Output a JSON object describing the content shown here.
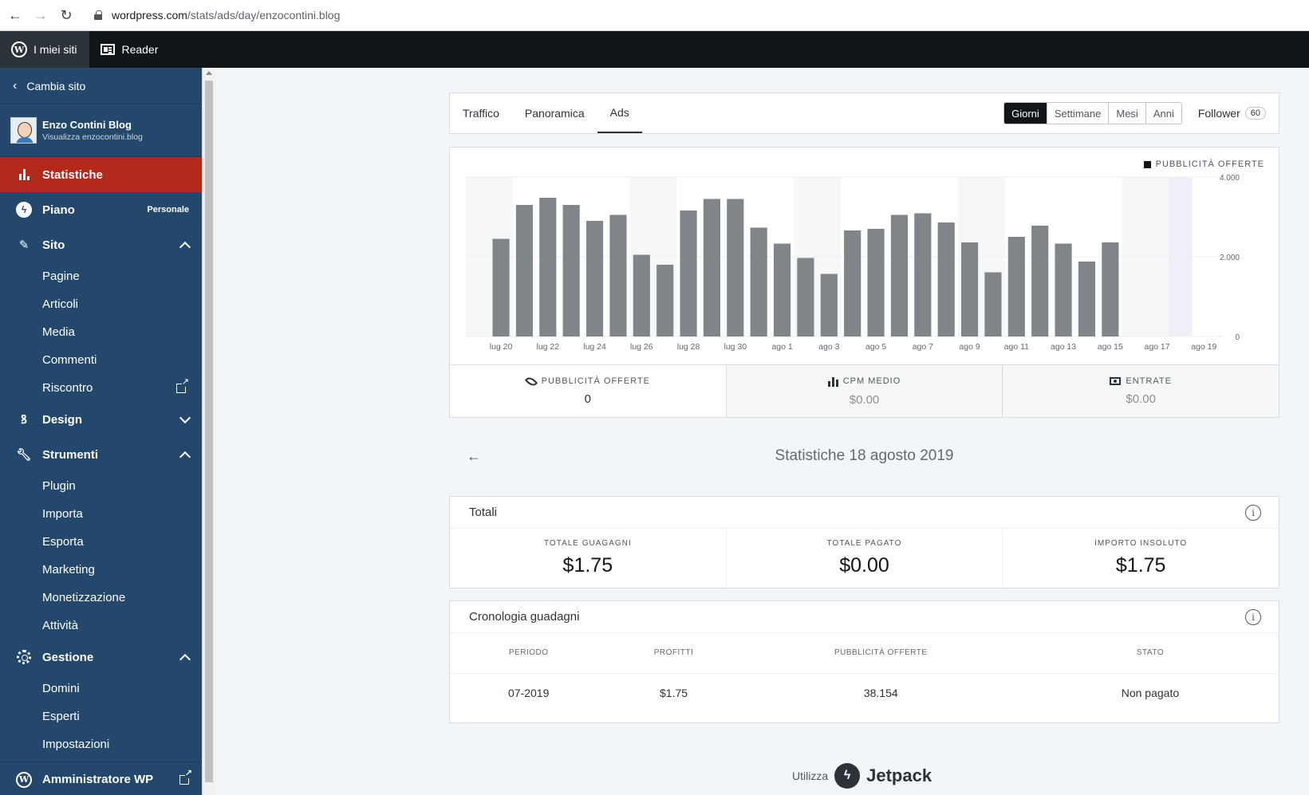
{
  "browser": {
    "url_host": "wordpress.com",
    "url_path": "/stats/ads/day/enzocontini.blog"
  },
  "masterbar": {
    "my_sites": "I miei siti",
    "reader": "Reader"
  },
  "sidebar": {
    "switch_site": "Cambia sito",
    "site_title": "Enzo Contini Blog",
    "site_subtitle": "Visualizza enzocontini.blog",
    "stats": "Statistiche",
    "plan": "Piano",
    "plan_badge": "Personale",
    "site": "Sito",
    "site_items": [
      "Pagine",
      "Articoli",
      "Media",
      "Commenti",
      "Riscontro"
    ],
    "design": "Design",
    "tools": "Strumenti",
    "tools_items": [
      "Plugin",
      "Importa",
      "Esporta",
      "Marketing",
      "Monetizzazione",
      "Attività"
    ],
    "manage": "Gestione",
    "manage_items": [
      "Domini",
      "Esperti",
      "Impostazioni"
    ],
    "wp_admin": "Amministratore WP"
  },
  "nav": {
    "tabs": [
      "Traffico",
      "Panoramica",
      "Ads"
    ],
    "periods": [
      "Giorni",
      "Settimane",
      "Mesi",
      "Anni"
    ],
    "follower_label": "Follower",
    "follower_count": "60"
  },
  "chart_data": {
    "type": "bar",
    "legend": "PUBBLICITÀ OFFERTE",
    "x": [
      "lug 19",
      "lug 20",
      "lug 21",
      "lug 22",
      "lug 23",
      "lug 24",
      "lug 25",
      "lug 26",
      "lug 27",
      "lug 28",
      "lug 29",
      "lug 30",
      "lug 31",
      "ago 1",
      "ago 2",
      "ago 3",
      "ago 4",
      "ago 5",
      "ago 6",
      "ago 7",
      "ago 8",
      "ago 9",
      "ago 10",
      "ago 11",
      "ago 12",
      "ago 13",
      "ago 14",
      "ago 15",
      "ago 16",
      "ago 17",
      "ago 18",
      "ago 19"
    ],
    "x_tick_labels": [
      "lug 20",
      "lug 22",
      "lug 24",
      "lug 26",
      "lug 28",
      "lug 30",
      "ago 1",
      "ago 3",
      "ago 5",
      "ago 7",
      "ago 9",
      "ago 11",
      "ago 13",
      "ago 15",
      "ago 17",
      "ago 19"
    ],
    "values": [
      0,
      2450,
      3300,
      3480,
      3300,
      2900,
      3050,
      2050,
      1800,
      3160,
      3450,
      3450,
      2730,
      2330,
      1970,
      1570,
      2660,
      2700,
      3050,
      3090,
      2860,
      2360,
      1610,
      2500,
      2780,
      2330,
      1880,
      2360,
      0,
      0,
      0,
      0
    ],
    "y_ticks": [
      "4.000",
      "2.000",
      "0"
    ],
    "ylim": [
      0,
      4000
    ],
    "selected": "ago 18"
  },
  "summary": {
    "ads_label": "PUBBLICITÀ OFFERTE",
    "ads_value": "0",
    "cpm_label": "CPM MEDIO",
    "cpm_value": "$0.00",
    "revenue_label": "ENTRATE",
    "revenue_value": "$0.00"
  },
  "date_title": "Statistiche 18 agosto 2019",
  "totals": {
    "title": "Totali",
    "cells": [
      {
        "label": "TOTALE GUAGAGNI",
        "value": "$1.75"
      },
      {
        "label": "TOTALE PAGATO",
        "value": "$0.00"
      },
      {
        "label": "IMPORTO INSOLUTO",
        "value": "$1.75"
      }
    ]
  },
  "history": {
    "title": "Cronologia guadagni",
    "headers": [
      "PERIODO",
      "PROFITTI",
      "PUBBLICITÀ OFFERTE",
      "STATO"
    ],
    "rows": [
      [
        "07-2019",
        "$1.75",
        "38.154",
        "Non pagato"
      ]
    ]
  },
  "footer": {
    "prefix": "Utilizza",
    "brand": "Jetpack"
  },
  "colors": {
    "sidebar": "#23486b",
    "active": "#b3291c",
    "bar": "#7f8589"
  }
}
